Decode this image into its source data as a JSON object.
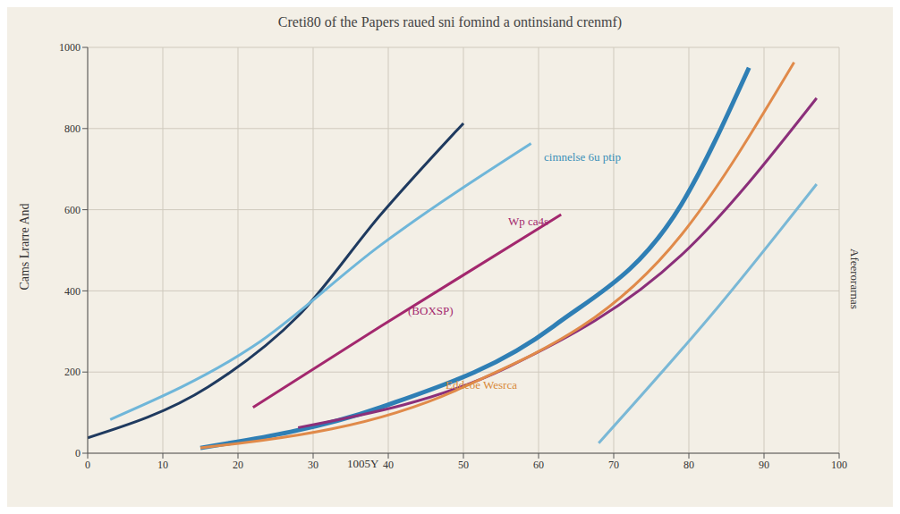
{
  "chart_data": {
    "type": "line",
    "title": "Creti80 of the Papers raued sni fomind a ontinsiand crenmf)",
    "y_label": "Cams Lrarre And",
    "xlim": [
      0,
      100
    ],
    "xticks": [
      0,
      10,
      20,
      30,
      40,
      50,
      60,
      70,
      80,
      90,
      100
    ],
    "ylim": [
      0,
      1000
    ],
    "yticks": [
      0,
      200,
      400,
      600,
      800,
      1000
    ],
    "grid": true,
    "annotations": [
      "(BOXSP)",
      "Wp ca4s",
      "cimnelse 6u ptip",
      "Eddeoe Wesrca",
      "1005Y",
      "Afeerorarnas"
    ],
    "series": [
      {
        "color": "#1f3a5f",
        "x": [
          0,
          16,
          28,
          39,
          50
        ],
        "values": [
          38,
          163,
          338,
          588,
          813
        ]
      },
      {
        "color": "#6fb6d9",
        "x": [
          3,
          22,
          39,
          59
        ],
        "values": [
          83,
          263,
          513,
          763
        ]
      },
      {
        "color": "#a3286e",
        "x": [
          22,
          39,
          63
        ],
        "values": [
          113,
          313,
          588
        ]
      },
      {
        "color": "#2f7fb5",
        "x": [
          15,
          39,
          62,
          79,
          88
        ],
        "values": [
          13,
          113,
          313,
          613,
          950
        ]
      },
      {
        "color": "#8b2f7a",
        "x": [
          28,
          56,
          79,
          97
        ],
        "values": [
          63,
          213,
          488,
          875
        ]
      },
      {
        "color": "#e08a4a",
        "x": [
          15,
          50,
          79,
          94
        ],
        "values": [
          13,
          163,
          538,
          963
        ]
      },
      {
        "color": "#7ab8d6",
        "x": [
          68,
          84,
          97
        ],
        "values": [
          25,
          363,
          663
        ]
      }
    ]
  }
}
